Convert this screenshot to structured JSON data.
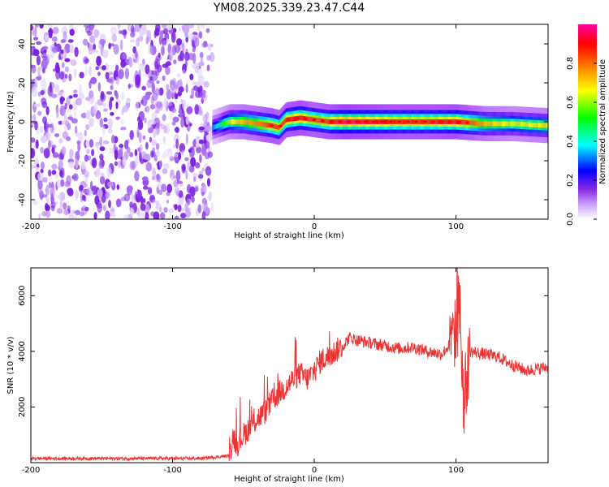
{
  "title": "YM08.2025.339.23.47.C44",
  "chart_data": [
    {
      "type": "heatmap",
      "xlabel": "Height of straight line (km)",
      "ylabel": "Frequency (Hz)",
      "xlim": [
        -200,
        165
      ],
      "ylim": [
        -50,
        50
      ],
      "xticks": [
        -200,
        -100,
        0,
        100
      ],
      "yticks": [
        -40,
        -20,
        0,
        20,
        40
      ],
      "colorbar": {
        "label": "Normalized spectral amplitude",
        "range": [
          0,
          1
        ],
        "ticks": [
          0.0,
          0.2,
          0.4,
          0.6,
          0.8
        ],
        "tick_labels": [
          "0.0",
          "0.2",
          "0.4",
          "0.6",
          "0.8"
        ],
        "colormap": [
          "#ffffff",
          "#9b30ff",
          "#0000ff",
          "#00ffff",
          "#00ff00",
          "#ffff00",
          "#ff8000",
          "#ff0000",
          "#ff00a0"
        ]
      },
      "noise_region_x": [
        -200,
        -72
      ],
      "signal_band": {
        "x": [
          -72,
          -60,
          -50,
          -40,
          -30,
          -25,
          -20,
          -10,
          0,
          10,
          20,
          40,
          60,
          80,
          100,
          120,
          140,
          165
        ],
        "center_hz": [
          -3,
          0,
          0,
          -1,
          -2,
          -3,
          1,
          2,
          1,
          0,
          0,
          0,
          0,
          0,
          0,
          -1,
          -1,
          -2
        ],
        "peak_amplitude": [
          0.3,
          0.6,
          0.7,
          0.75,
          0.85,
          0.8,
          0.85,
          0.9,
          0.8,
          0.85,
          0.95,
          0.9,
          0.85,
          0.85,
          0.9,
          0.7,
          0.6,
          0.65
        ]
      },
      "grid": false
    },
    {
      "type": "line",
      "xlabel": "Height of straight line (km)",
      "ylabel": "SNR (10 * v/v)",
      "xlim": [
        -200,
        165
      ],
      "ylim": [
        0,
        7000
      ],
      "xticks": [
        -200,
        -100,
        0,
        100
      ],
      "yticks": [
        2000,
        4000,
        6000
      ],
      "series": [
        {
          "color": "#ee3333",
          "x": [
            -200,
            -180,
            -160,
            -140,
            -120,
            -100,
            -80,
            -70,
            -60,
            -57,
            -55,
            -50,
            -45,
            -40,
            -35,
            -30,
            -25,
            -20,
            -15,
            -10,
            -5,
            0,
            5,
            10,
            15,
            20,
            25,
            30,
            40,
            50,
            60,
            70,
            80,
            90,
            95,
            100,
            103,
            105,
            110,
            120,
            130,
            140,
            150,
            165
          ],
          "y": [
            150,
            150,
            150,
            150,
            150,
            150,
            150,
            200,
            250,
            1000,
            600,
            1000,
            1300,
            1600,
            1800,
            2200,
            2500,
            2700,
            3000,
            3200,
            3000,
            3300,
            3700,
            3800,
            4000,
            4200,
            4500,
            4400,
            4300,
            4200,
            4100,
            4150,
            4000,
            3900,
            4200,
            4700,
            5500,
            2000,
            4000,
            3900,
            3800,
            3500,
            3300,
            3450
          ]
        }
      ],
      "grid": false
    }
  ]
}
